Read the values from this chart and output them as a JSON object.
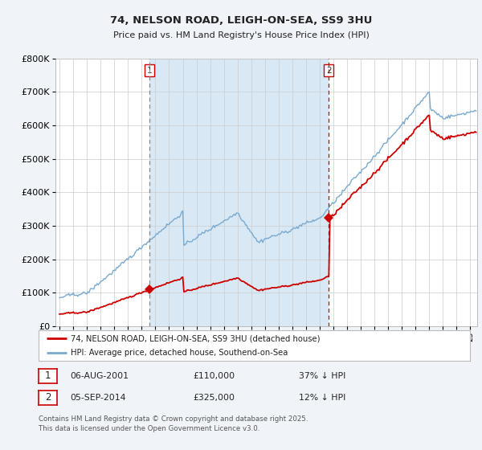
{
  "title_line1": "74, NELSON ROAD, LEIGH-ON-SEA, SS9 3HU",
  "title_line2": "Price paid vs. HM Land Registry's House Price Index (HPI)",
  "legend_label_red": "74, NELSON ROAD, LEIGH-ON-SEA, SS9 3HU (detached house)",
  "legend_label_blue": "HPI: Average price, detached house, Southend-on-Sea",
  "annotation1_label": "1",
  "annotation1_date": "06-AUG-2001",
  "annotation1_price": "£110,000",
  "annotation1_hpi": "37% ↓ HPI",
  "annotation2_label": "2",
  "annotation2_date": "05-SEP-2014",
  "annotation2_price": "£325,000",
  "annotation2_hpi": "12% ↓ HPI",
  "footnote": "Contains HM Land Registry data © Crown copyright and database right 2025.\nThis data is licensed under the Open Government Licence v3.0.",
  "vline1_x": 2001.58,
  "vline2_x": 2014.67,
  "sale1_x": 2001.58,
  "sale1_y": 110000,
  "sale2_x": 2014.67,
  "sale2_y": 325000,
  "ylim": [
    0,
    800000
  ],
  "xlim_start": 1994.7,
  "xlim_end": 2025.5,
  "background_color": "#f0f4f8",
  "plot_bg_color": "#ffffff",
  "red_color": "#cc0000",
  "blue_color": "#7aaad0",
  "vline1_color": "#888888",
  "vline2_color": "#cc0000",
  "grid_color": "#cccccc",
  "shade_color": "#d8e8f5"
}
